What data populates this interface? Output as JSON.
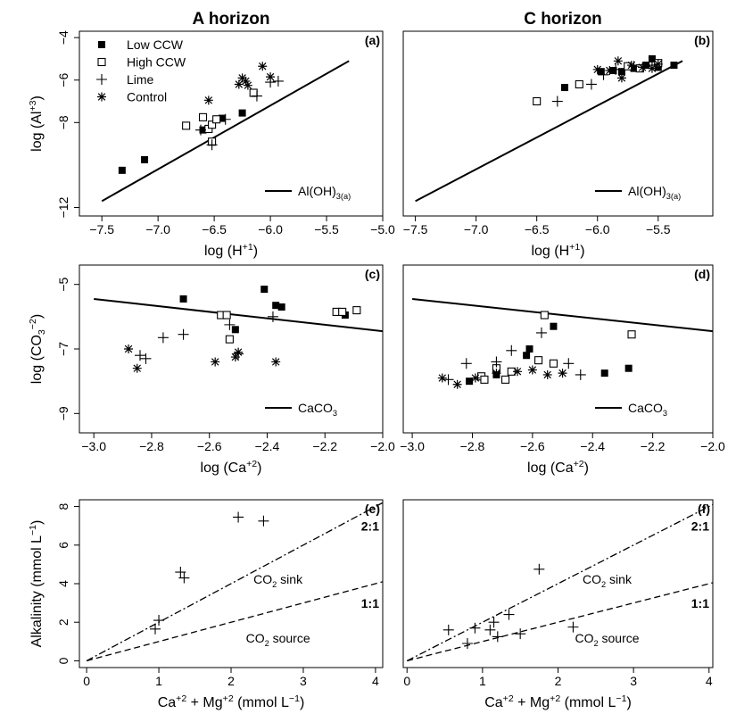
{
  "figure": {
    "column_titles": [
      "A horizon",
      "C horizon"
    ],
    "legend_items": [
      "Low CCW",
      "High CCW",
      "Lime",
      "Control"
    ]
  },
  "chart_data": [
    {
      "id": "a",
      "panel_label": "(a)",
      "type": "scatter",
      "xlabel": "log (H",
      "xlabel_sup": "+1",
      "xlabel_end": ")",
      "ylabel": "log (Al",
      "ylabel_sup": "+3",
      "ylabel_end": ")",
      "xlim": [
        -7.7,
        -5.0
      ],
      "ylim": [
        -12.4,
        -3.7
      ],
      "xticks": [
        -7.5,
        -7.0,
        -6.5,
        -6.0,
        -5.5,
        -5.0
      ],
      "xtick_labels": [
        "−7.5",
        "−7.0",
        "−6.5",
        "−6.0",
        "−5.5",
        "−5.0"
      ],
      "yticks": [
        -4,
        -6,
        -8,
        -12
      ],
      "ytick_labels": [
        "−4",
        "−6",
        "−8",
        "−12"
      ],
      "reference_lines": [
        {
          "name": "Al(OH)",
          "name_sub": "3(a)",
          "style": "solid",
          "x": [
            -7.5,
            -5.3
          ],
          "y": [
            -11.7,
            -5.1
          ]
        }
      ],
      "legend": {
        "position": "top-left"
      },
      "series": [
        {
          "name": "Low CCW",
          "marker": "filled-square",
          "points": [
            [
              -7.32,
              -10.25
            ],
            [
              -7.12,
              -9.75
            ],
            [
              -6.6,
              -8.35
            ],
            [
              -6.43,
              -7.8
            ],
            [
              -6.25,
              -7.55
            ]
          ]
        },
        {
          "name": "High CCW",
          "marker": "open-square",
          "points": [
            [
              -6.75,
              -8.15
            ],
            [
              -6.6,
              -7.75
            ],
            [
              -6.55,
              -8.3
            ],
            [
              -6.52,
              -8.1
            ],
            [
              -6.48,
              -7.85
            ],
            [
              -6.15,
              -6.6
            ],
            [
              -6.52,
              -8.9
            ]
          ]
        },
        {
          "name": "Lime",
          "marker": "plus",
          "points": [
            [
              -6.62,
              -8.35
            ],
            [
              -6.52,
              -9.05
            ],
            [
              -6.4,
              -7.85
            ],
            [
              -6.12,
              -6.75
            ],
            [
              -6.0,
              -6.1
            ],
            [
              -5.93,
              -6.05
            ]
          ]
        },
        {
          "name": "Control",
          "marker": "asterisk",
          "points": [
            [
              -6.55,
              -6.95
            ],
            [
              -6.25,
              -5.9
            ],
            [
              -6.22,
              -6.05
            ],
            [
              -6.2,
              -6.25
            ],
            [
              -6.07,
              -5.35
            ],
            [
              -6.0,
              -5.85
            ],
            [
              -6.28,
              -6.2
            ]
          ]
        }
      ]
    },
    {
      "id": "b",
      "panel_label": "(b)",
      "type": "scatter",
      "xlabel": "log (H",
      "xlabel_sup": "+1",
      "xlabel_end": ")",
      "xlim": [
        -7.6,
        -5.05
      ],
      "ylim": [
        -12.4,
        -3.7
      ],
      "xticks": [
        -7.5,
        -7.0,
        -6.5,
        -6.0,
        -5.5
      ],
      "xtick_labels": [
        "−7.5",
        "−7.0",
        "−6.5",
        "−6.0",
        "−5.5"
      ],
      "reference_lines": [
        {
          "name": "Al(OH)",
          "name_sub": "3(a)",
          "style": "solid",
          "x": [
            -7.5,
            -5.3
          ],
          "y": [
            -11.7,
            -5.1
          ]
        }
      ],
      "series": [
        {
          "name": "Low CCW",
          "marker": "filled-square",
          "points": [
            [
              -6.27,
              -6.35
            ],
            [
              -5.97,
              -5.6
            ],
            [
              -5.87,
              -5.55
            ],
            [
              -5.8,
              -5.6
            ],
            [
              -5.7,
              -5.45
            ],
            [
              -5.6,
              -5.3
            ],
            [
              -5.55,
              -5.0
            ],
            [
              -5.5,
              -5.4
            ],
            [
              -5.37,
              -5.3
            ]
          ]
        },
        {
          "name": "High CCW",
          "marker": "open-square",
          "points": [
            [
              -6.5,
              -7.0
            ],
            [
              -6.15,
              -6.2
            ],
            [
              -5.65,
              -5.45
            ],
            [
              -5.5,
              -5.2
            ],
            [
              -5.75,
              -5.35
            ]
          ]
        },
        {
          "name": "Lime",
          "marker": "plus",
          "points": [
            [
              -6.33,
              -7.0
            ],
            [
              -6.05,
              -6.2
            ],
            [
              -5.95,
              -5.75
            ],
            [
              -5.85,
              -5.5
            ],
            [
              -5.7,
              -5.35
            ],
            [
              -5.55,
              -5.3
            ]
          ]
        },
        {
          "name": "Control",
          "marker": "asterisk",
          "points": [
            [
              -6.0,
              -5.5
            ],
            [
              -5.9,
              -5.55
            ],
            [
              -5.83,
              -5.1
            ],
            [
              -5.8,
              -5.9
            ],
            [
              -5.72,
              -5.3
            ],
            [
              -5.63,
              -5.4
            ],
            [
              -5.55,
              -5.45
            ],
            [
              -5.5,
              -5.25
            ]
          ]
        }
      ]
    },
    {
      "id": "c",
      "panel_label": "(c)",
      "type": "scatter",
      "xlabel": "log (Ca",
      "xlabel_sup": "+2",
      "xlabel_end": ")",
      "ylabel": "log (CO",
      "ylabel_sub": "3",
      "ylabel_sup": "−2",
      "ylabel_end": ")",
      "xlim": [
        -3.05,
        -2.0
      ],
      "ylim": [
        -9.6,
        -4.4
      ],
      "xticks": [
        -3.0,
        -2.8,
        -2.6,
        -2.4,
        -2.2,
        -2.0
      ],
      "xtick_labels": [
        "−3.0",
        "−2.8",
        "−2.6",
        "−2.4",
        "−2.2",
        "−2.0"
      ],
      "yticks": [
        -5,
        -7,
        -9
      ],
      "ytick_labels": [
        "−5",
        "−7",
        "−9"
      ],
      "reference_lines": [
        {
          "name": "CaCO",
          "name_sub": "3",
          "style": "solid",
          "x": [
            -3.0,
            -2.0
          ],
          "y": [
            -5.45,
            -6.45
          ]
        }
      ],
      "series": [
        {
          "name": "Low CCW",
          "marker": "filled-square",
          "points": [
            [
              -2.69,
              -5.45
            ],
            [
              -2.51,
              -6.4
            ],
            [
              -2.41,
              -5.15
            ],
            [
              -2.37,
              -5.65
            ],
            [
              -2.35,
              -5.7
            ],
            [
              -2.13,
              -5.95
            ]
          ]
        },
        {
          "name": "High CCW",
          "marker": "open-square",
          "points": [
            [
              -2.56,
              -5.95
            ],
            [
              -2.54,
              -5.95
            ],
            [
              -2.53,
              -6.7
            ],
            [
              -2.16,
              -5.85
            ],
            [
              -2.14,
              -5.85
            ],
            [
              -2.09,
              -5.8
            ]
          ]
        },
        {
          "name": "Lime",
          "marker": "plus",
          "points": [
            [
              -2.84,
              -7.2
            ],
            [
              -2.82,
              -7.3
            ],
            [
              -2.76,
              -6.65
            ],
            [
              -2.69,
              -6.55
            ],
            [
              -2.53,
              -6.25
            ],
            [
              -2.5,
              -7.15
            ],
            [
              -2.38,
              -6.0
            ]
          ]
        },
        {
          "name": "Control",
          "marker": "asterisk",
          "points": [
            [
              -2.88,
              -7.0
            ],
            [
              -2.85,
              -7.6
            ],
            [
              -2.58,
              -7.4
            ],
            [
              -2.51,
              -7.25
            ],
            [
              -2.5,
              -7.1
            ],
            [
              -2.37,
              -7.4
            ]
          ]
        }
      ]
    },
    {
      "id": "d",
      "panel_label": "(d)",
      "type": "scatter",
      "xlabel": "log (Ca",
      "xlabel_sup": "+2",
      "xlabel_end": ")",
      "xlim": [
        -3.03,
        -2.0
      ],
      "ylim": [
        -9.6,
        -4.4
      ],
      "xticks": [
        -3.0,
        -2.8,
        -2.6,
        -2.4,
        -2.2,
        -2.0
      ],
      "xtick_labels": [
        "−3.0",
        "−2.8",
        "−2.6",
        "−2.4",
        "−2.2",
        "−2.0"
      ],
      "reference_lines": [
        {
          "name": "CaCO",
          "name_sub": "3",
          "style": "solid",
          "x": [
            -3.0,
            -2.0
          ],
          "y": [
            -5.45,
            -6.45
          ]
        }
      ],
      "series": [
        {
          "name": "Low CCW",
          "marker": "filled-square",
          "points": [
            [
              -2.81,
              -8.0
            ],
            [
              -2.72,
              -7.8
            ],
            [
              -2.62,
              -7.2
            ],
            [
              -2.61,
              -7.0
            ],
            [
              -2.53,
              -6.3
            ],
            [
              -2.36,
              -7.75
            ],
            [
              -2.28,
              -7.6
            ]
          ]
        },
        {
          "name": "High CCW",
          "marker": "open-square",
          "points": [
            [
              -2.77,
              -7.85
            ],
            [
              -2.76,
              -7.95
            ],
            [
              -2.72,
              -7.6
            ],
            [
              -2.69,
              -7.95
            ],
            [
              -2.67,
              -7.7
            ],
            [
              -2.58,
              -7.35
            ],
            [
              -2.56,
              -5.95
            ],
            [
              -2.53,
              -7.45
            ],
            [
              -2.27,
              -6.55
            ]
          ]
        },
        {
          "name": "Lime",
          "marker": "plus",
          "points": [
            [
              -2.88,
              -7.95
            ],
            [
              -2.82,
              -7.45
            ],
            [
              -2.72,
              -7.4
            ],
            [
              -2.67,
              -7.05
            ],
            [
              -2.57,
              -6.5
            ],
            [
              -2.48,
              -7.45
            ],
            [
              -2.44,
              -7.8
            ]
          ]
        },
        {
          "name": "Control",
          "marker": "asterisk",
          "points": [
            [
              -2.9,
              -7.9
            ],
            [
              -2.85,
              -8.1
            ],
            [
              -2.79,
              -7.9
            ],
            [
              -2.72,
              -7.75
            ],
            [
              -2.65,
              -7.7
            ],
            [
              -2.6,
              -7.65
            ],
            [
              -2.55,
              -7.8
            ],
            [
              -2.5,
              -7.75
            ]
          ]
        }
      ]
    },
    {
      "id": "e",
      "panel_label": "(e)",
      "type": "scatter",
      "xlabel_parts": [
        "Ca",
        "+2",
        " + Mg",
        "+2",
        " (mmol  L",
        "−1",
        ")"
      ],
      "ylabel": "Alkalinity (mmol  L",
      "ylabel_sup": "−1",
      "ylabel_end": ")",
      "xlim": [
        -0.1,
        4.1
      ],
      "ylim": [
        -0.35,
        8.35
      ],
      "xticks": [
        0,
        1,
        2,
        3,
        4
      ],
      "xtick_labels": [
        "0",
        "1",
        "2",
        "3",
        "4"
      ],
      "yticks": [
        0,
        2,
        4,
        6,
        8
      ],
      "ytick_labels": [
        "0",
        "2",
        "4",
        "6",
        "8"
      ],
      "reference_lines": [
        {
          "name": "2:1",
          "style": "dashdot",
          "x": [
            0,
            4.1
          ],
          "y": [
            0,
            8.2
          ]
        },
        {
          "name": "1:1",
          "style": "dashed",
          "x": [
            0,
            4.1
          ],
          "y": [
            0,
            4.1
          ]
        }
      ],
      "region_labels": [
        {
          "text": "CO",
          "sub": "2",
          "end": " sink"
        },
        {
          "text": "CO",
          "sub": "2",
          "end": " source"
        }
      ],
      "series": [
        {
          "name": "Lime",
          "marker": "plus",
          "points": [
            [
              0.95,
              1.65
            ],
            [
              1.0,
              2.1
            ],
            [
              1.3,
              4.6
            ],
            [
              1.35,
              4.3
            ],
            [
              2.1,
              7.45
            ],
            [
              2.45,
              7.25
            ]
          ]
        }
      ]
    },
    {
      "id": "f",
      "panel_label": "(f)",
      "type": "scatter",
      "xlabel_parts": [
        "Ca",
        "+2",
        " + Mg",
        "+2",
        " (mmol L",
        "−1",
        ")"
      ],
      "xlim": [
        -0.05,
        4.05
      ],
      "ylim": [
        -0.35,
        8.35
      ],
      "xticks": [
        0,
        1,
        2,
        3,
        4
      ],
      "xtick_labels": [
        "0",
        "1",
        "2",
        "3",
        "4"
      ],
      "reference_lines": [
        {
          "name": "2:1",
          "style": "dashdot",
          "x": [
            0,
            4.05
          ],
          "y": [
            0,
            8.1
          ]
        },
        {
          "name": "1:1",
          "style": "dashed",
          "x": [
            0,
            4.05
          ],
          "y": [
            0,
            4.05
          ]
        }
      ],
      "region_labels": [
        {
          "text": "CO",
          "sub": "2",
          "end": " sink"
        },
        {
          "text": "CO",
          "sub": "2",
          "end": " source"
        }
      ],
      "series": [
        {
          "name": "Lime",
          "marker": "plus",
          "points": [
            [
              0.55,
              1.6
            ],
            [
              0.8,
              0.9
            ],
            [
              0.9,
              1.7
            ],
            [
              1.1,
              1.6
            ],
            [
              1.15,
              2.0
            ],
            [
              1.2,
              1.25
            ],
            [
              1.35,
              2.4
            ],
            [
              1.5,
              1.4
            ],
            [
              1.75,
              4.75
            ],
            [
              2.2,
              1.75
            ]
          ]
        }
      ]
    }
  ]
}
